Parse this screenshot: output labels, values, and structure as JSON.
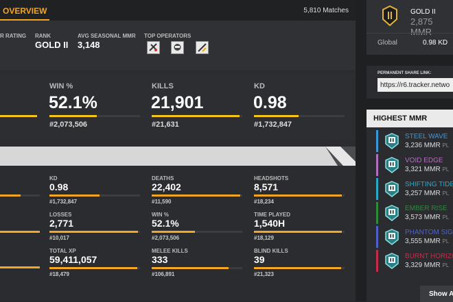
{
  "tabs": {
    "overview": "OVERVIEW",
    "matches": "5,810 Matches"
  },
  "info": {
    "rating_label": "R RATING",
    "rank_label": "RANK",
    "rank_value": "GOLD II",
    "avg_label": "AVG SEASONAL MMR",
    "avg_value": "3,148",
    "ops_label": "TOP OPERATORS",
    "operators": [
      "operator-icon-1",
      "operator-icon-2",
      "operator-icon-3"
    ]
  },
  "big_stats": [
    {
      "label": "WIN %",
      "value": "52.1%",
      "rank": "#2,073,506",
      "fill": 0.52
    },
    {
      "label": "KILLS",
      "value": "21,901",
      "rank": "#21,631",
      "fill": 0.97
    },
    {
      "label": "KD",
      "value": "0.98",
      "rank": "#1,732,847",
      "fill": 0.49
    }
  ],
  "detail_stats": [
    {
      "label": "KD",
      "value": "0.98",
      "rank": "#1,732,847",
      "fill": 0.55
    },
    {
      "label": "DEATHS",
      "value": "22,402",
      "rank": "#11,590",
      "fill": 0.98
    },
    {
      "label": "HEADSHOTS",
      "value": "8,571",
      "rank": "#18,234",
      "fill": 0.97
    },
    {
      "label": "LOSSES",
      "value": "2,771",
      "rank": "#10,017",
      "fill": 0.98
    },
    {
      "label": "WIN %",
      "value": "52.1%",
      "rank": "#2,073,506",
      "fill": 0.48
    },
    {
      "label": "TIME PLAYED",
      "value": "1,540H",
      "rank": "#18,129",
      "fill": 0.97
    },
    {
      "label": "TOTAL XP",
      "value": "59,411,057",
      "rank": "#18,479",
      "fill": 0.97
    },
    {
      "label": "MELEE KILLS",
      "value": "333",
      "rank": "#106,891",
      "fill": 0.85
    },
    {
      "label": "BLIND KILLS",
      "value": "39",
      "rank": "#21,323",
      "fill": 0.96
    }
  ],
  "rank_card": {
    "rank": "GOLD II",
    "mmr": "2,875 MMR",
    "global_label": "Global",
    "global_value": "0.98 KD"
  },
  "share": {
    "label": "PERMANENT SHARE LINK:",
    "url": "https://r6.tracker.netwo"
  },
  "highest_mmr": {
    "title": "HIGHEST MMR",
    "seasons": [
      {
        "name": "STEEL WAVE",
        "mmr": "3,236 MMR",
        "suffix": "PL",
        "color": "#3a9ad9"
      },
      {
        "name": "VOID EDGE",
        "mmr": "3,321 MMR",
        "suffix": "PL",
        "color": "#b46fbe"
      },
      {
        "name": "SHIFTING TIDE",
        "mmr": "3,257 MMR",
        "suffix": "PL",
        "color": "#2aa8c8"
      },
      {
        "name": "EMBER RISE",
        "mmr": "3,573 MMR",
        "suffix": "PL",
        "color": "#2f8a3a"
      },
      {
        "name": "PHANTOM SIGHT",
        "mmr": "3,555 MMR",
        "suffix": "PL",
        "color": "#5062c8"
      },
      {
        "name": "BURNT HORIZON",
        "mmr": "3,329 MMR",
        "suffix": "PL",
        "color": "#c62c4a"
      }
    ],
    "show_all": "Show A"
  },
  "colors": {
    "accent": "#f5a623",
    "bar": "#f5c518"
  }
}
